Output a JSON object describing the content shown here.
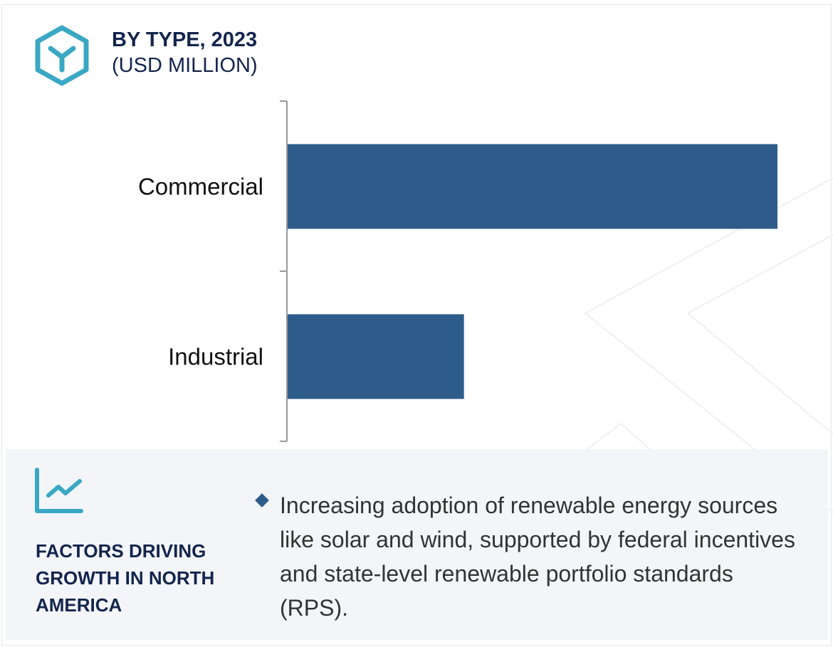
{
  "header": {
    "title": "BY TYPE, 2023",
    "subtitle": "(USD MILLION)",
    "icon": "hexagon-y-icon"
  },
  "chart_data": {
    "type": "bar",
    "orientation": "horizontal",
    "categories": [
      "Commercial",
      "Industrial"
    ],
    "values": [
      1.0,
      0.36
    ],
    "value_note": "relative",
    "title": "BY TYPE, 2023",
    "ylabel": "(USD MILLION)",
    "grid": false,
    "bar_color": "#2d5c8a"
  },
  "factors": {
    "icon": "line-chart-icon",
    "title": "FACTORS DRIVING GROWTH IN NORTH AMERICA",
    "bullets": [
      "Increasing adoption of renewable energy sources like solar and wind, supported by federal incentives and state-level renewable portfolio standards (RPS)."
    ]
  },
  "colors": {
    "accent": "#3aa8c4",
    "navy": "#13254d",
    "bar": "#2d5c8a",
    "panel": "#f3f5f9"
  }
}
